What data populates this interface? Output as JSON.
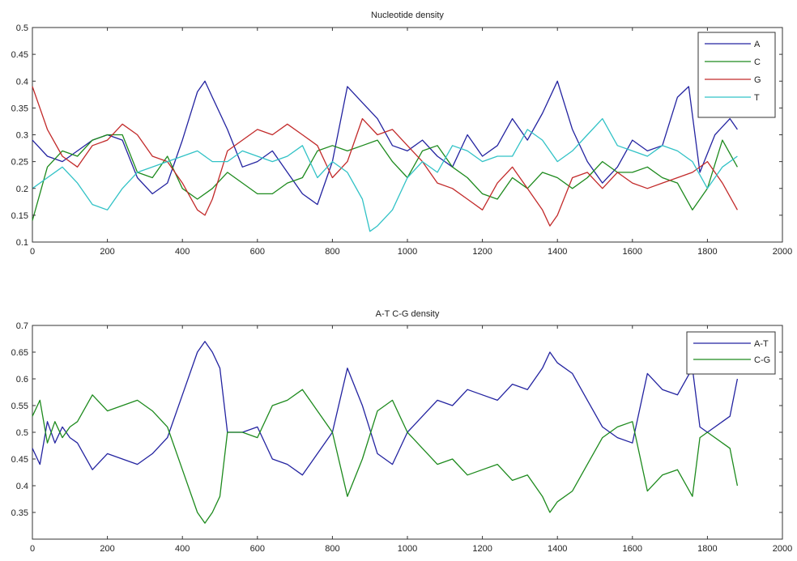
{
  "chart_data": [
    {
      "type": "line",
      "title": "Nucleotide density",
      "xlabel": "",
      "ylabel": "",
      "xlim": [
        0,
        2000
      ],
      "ylim": [
        0.1,
        0.5
      ],
      "xticks": [
        0,
        200,
        400,
        600,
        800,
        1000,
        1200,
        1400,
        1600,
        1800,
        2000
      ],
      "yticks": [
        0.1,
        0.15,
        0.2,
        0.25,
        0.3,
        0.35,
        0.4,
        0.45,
        0.5
      ],
      "xtick_labels": [
        "0",
        "200",
        "400",
        "600",
        "800",
        "1000",
        "1200",
        "1400",
        "1600",
        "1800",
        "2000"
      ],
      "ytick_labels": [
        "0.1",
        "0.15",
        "0.2",
        "0.25",
        "0.3",
        "0.35",
        "0.4",
        "0.45",
        "0.5"
      ],
      "legend_position": "top-right",
      "grid": false,
      "series": [
        {
          "name": "A",
          "color": "#2323a0",
          "x": [
            0,
            40,
            80,
            120,
            160,
            200,
            240,
            280,
            320,
            360,
            400,
            440,
            460,
            480,
            520,
            560,
            600,
            640,
            680,
            720,
            760,
            800,
            840,
            880,
            920,
            960,
            1000,
            1040,
            1080,
            1120,
            1160,
            1200,
            1240,
            1280,
            1320,
            1360,
            1400,
            1440,
            1480,
            1520,
            1560,
            1600,
            1640,
            1680,
            1720,
            1750,
            1780,
            1820,
            1860,
            1880
          ],
          "y": [
            0.29,
            0.26,
            0.25,
            0.27,
            0.29,
            0.3,
            0.29,
            0.22,
            0.19,
            0.21,
            0.29,
            0.38,
            0.4,
            0.37,
            0.31,
            0.24,
            0.25,
            0.27,
            0.23,
            0.19,
            0.17,
            0.25,
            0.39,
            0.36,
            0.33,
            0.28,
            0.27,
            0.29,
            0.26,
            0.24,
            0.3,
            0.26,
            0.28,
            0.33,
            0.29,
            0.34,
            0.4,
            0.31,
            0.25,
            0.21,
            0.24,
            0.29,
            0.27,
            0.28,
            0.37,
            0.39,
            0.23,
            0.3,
            0.33,
            0.31
          ]
        },
        {
          "name": "C",
          "color": "#1d8a1d",
          "x": [
            0,
            40,
            80,
            120,
            160,
            200,
            240,
            280,
            320,
            360,
            400,
            440,
            480,
            520,
            560,
            600,
            640,
            680,
            720,
            760,
            800,
            840,
            880,
            920,
            960,
            1000,
            1040,
            1080,
            1120,
            1160,
            1200,
            1240,
            1280,
            1320,
            1360,
            1400,
            1440,
            1480,
            1520,
            1560,
            1600,
            1640,
            1680,
            1720,
            1760,
            1800,
            1840,
            1880
          ],
          "y": [
            0.14,
            0.24,
            0.27,
            0.26,
            0.29,
            0.3,
            0.3,
            0.23,
            0.22,
            0.26,
            0.2,
            0.18,
            0.2,
            0.23,
            0.21,
            0.19,
            0.19,
            0.21,
            0.22,
            0.27,
            0.28,
            0.27,
            0.28,
            0.29,
            0.25,
            0.22,
            0.27,
            0.28,
            0.24,
            0.22,
            0.19,
            0.18,
            0.22,
            0.2,
            0.23,
            0.22,
            0.2,
            0.22,
            0.25,
            0.23,
            0.23,
            0.24,
            0.22,
            0.21,
            0.16,
            0.2,
            0.29,
            0.24
          ]
        },
        {
          "name": "G",
          "color": "#c22a2a",
          "x": [
            0,
            40,
            80,
            120,
            160,
            200,
            240,
            280,
            320,
            360,
            400,
            440,
            460,
            480,
            520,
            560,
            600,
            640,
            680,
            720,
            760,
            800,
            840,
            880,
            920,
            960,
            1000,
            1040,
            1080,
            1120,
            1160,
            1200,
            1240,
            1280,
            1320,
            1360,
            1380,
            1400,
            1440,
            1480,
            1520,
            1560,
            1600,
            1640,
            1680,
            1720,
            1760,
            1800,
            1840,
            1880
          ],
          "y": [
            0.39,
            0.31,
            0.26,
            0.24,
            0.28,
            0.29,
            0.32,
            0.3,
            0.26,
            0.25,
            0.21,
            0.16,
            0.15,
            0.18,
            0.27,
            0.29,
            0.31,
            0.3,
            0.32,
            0.3,
            0.28,
            0.22,
            0.25,
            0.33,
            0.3,
            0.31,
            0.28,
            0.25,
            0.21,
            0.2,
            0.18,
            0.16,
            0.21,
            0.24,
            0.2,
            0.16,
            0.13,
            0.15,
            0.22,
            0.23,
            0.2,
            0.23,
            0.21,
            0.2,
            0.21,
            0.22,
            0.23,
            0.25,
            0.21,
            0.16
          ]
        },
        {
          "name": "T",
          "color": "#31c2c6",
          "x": [
            0,
            40,
            80,
            120,
            160,
            200,
            240,
            280,
            320,
            360,
            400,
            440,
            480,
            520,
            560,
            600,
            640,
            680,
            720,
            760,
            800,
            840,
            880,
            900,
            920,
            960,
            1000,
            1040,
            1080,
            1120,
            1160,
            1200,
            1240,
            1280,
            1320,
            1360,
            1400,
            1440,
            1480,
            1520,
            1560,
            1600,
            1640,
            1680,
            1720,
            1760,
            1800,
            1840,
            1880
          ],
          "y": [
            0.2,
            0.22,
            0.24,
            0.21,
            0.17,
            0.16,
            0.2,
            0.23,
            0.24,
            0.25,
            0.26,
            0.27,
            0.25,
            0.25,
            0.27,
            0.26,
            0.25,
            0.26,
            0.28,
            0.22,
            0.25,
            0.23,
            0.18,
            0.12,
            0.13,
            0.16,
            0.22,
            0.25,
            0.23,
            0.28,
            0.27,
            0.25,
            0.26,
            0.26,
            0.31,
            0.29,
            0.25,
            0.27,
            0.3,
            0.33,
            0.28,
            0.27,
            0.26,
            0.28,
            0.27,
            0.25,
            0.2,
            0.24,
            0.26
          ]
        }
      ]
    },
    {
      "type": "line",
      "title": "A-T C-G density",
      "xlabel": "",
      "ylabel": "",
      "xlim": [
        0,
        2000
      ],
      "ylim": [
        0.3,
        0.7
      ],
      "xticks": [
        0,
        200,
        400,
        600,
        800,
        1000,
        1200,
        1400,
        1600,
        1800,
        2000
      ],
      "yticks": [
        0.35,
        0.4,
        0.45,
        0.5,
        0.55,
        0.6,
        0.65,
        0.7
      ],
      "xtick_labels": [
        "0",
        "200",
        "400",
        "600",
        "800",
        "1000",
        "1200",
        "1400",
        "1600",
        "1800",
        "2000"
      ],
      "ytick_labels": [
        "0.35",
        "0.4",
        "0.45",
        "0.5",
        "0.55",
        "0.6",
        "0.65",
        "0.7"
      ],
      "legend_position": "top-right",
      "grid": false,
      "series": [
        {
          "name": "A-T",
          "color": "#2323a0",
          "x": [
            0,
            20,
            40,
            60,
            80,
            100,
            120,
            160,
            200,
            240,
            280,
            320,
            360,
            400,
            440,
            460,
            480,
            500,
            520,
            560,
            600,
            640,
            680,
            720,
            760,
            800,
            840,
            880,
            920,
            960,
            1000,
            1040,
            1080,
            1120,
            1160,
            1200,
            1240,
            1280,
            1320,
            1360,
            1380,
            1400,
            1440,
            1480,
            1520,
            1560,
            1600,
            1640,
            1680,
            1720,
            1760,
            1780,
            1800,
            1840,
            1860,
            1880
          ],
          "y": [
            0.47,
            0.44,
            0.52,
            0.48,
            0.51,
            0.49,
            0.48,
            0.43,
            0.46,
            0.45,
            0.44,
            0.46,
            0.49,
            0.57,
            0.65,
            0.67,
            0.65,
            0.62,
            0.5,
            0.5,
            0.51,
            0.45,
            0.44,
            0.42,
            0.46,
            0.5,
            0.62,
            0.55,
            0.46,
            0.44,
            0.5,
            0.53,
            0.56,
            0.55,
            0.58,
            0.57,
            0.56,
            0.59,
            0.58,
            0.62,
            0.65,
            0.63,
            0.61,
            0.56,
            0.51,
            0.49,
            0.48,
            0.61,
            0.58,
            0.57,
            0.62,
            0.51,
            0.5,
            0.52,
            0.53,
            0.6
          ]
        },
        {
          "name": "C-G",
          "color": "#1d8a1d",
          "x": [
            0,
            20,
            40,
            60,
            80,
            100,
            120,
            160,
            200,
            240,
            280,
            320,
            360,
            400,
            440,
            460,
            480,
            500,
            520,
            560,
            600,
            640,
            680,
            720,
            760,
            800,
            840,
            880,
            920,
            960,
            1000,
            1040,
            1080,
            1120,
            1160,
            1200,
            1240,
            1280,
            1320,
            1360,
            1380,
            1400,
            1440,
            1480,
            1520,
            1560,
            1600,
            1640,
            1680,
            1720,
            1760,
            1780,
            1800,
            1840,
            1860,
            1880
          ],
          "y": [
            0.53,
            0.56,
            0.48,
            0.52,
            0.49,
            0.51,
            0.52,
            0.57,
            0.54,
            0.55,
            0.56,
            0.54,
            0.51,
            0.43,
            0.35,
            0.33,
            0.35,
            0.38,
            0.5,
            0.5,
            0.49,
            0.55,
            0.56,
            0.58,
            0.54,
            0.5,
            0.38,
            0.45,
            0.54,
            0.56,
            0.5,
            0.47,
            0.44,
            0.45,
            0.42,
            0.43,
            0.44,
            0.41,
            0.42,
            0.38,
            0.35,
            0.37,
            0.39,
            0.44,
            0.49,
            0.51,
            0.52,
            0.39,
            0.42,
            0.43,
            0.38,
            0.49,
            0.5,
            0.48,
            0.47,
            0.4
          ]
        }
      ]
    }
  ]
}
